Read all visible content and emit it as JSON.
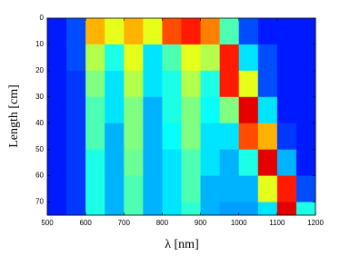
{
  "chart_data": {
    "type": "heatmap",
    "xlabel": "λ [nm]",
    "ylabel": "Length [cm]",
    "xbins": [
      500,
      550,
      600,
      650,
      700,
      750,
      800,
      850,
      900,
      950,
      1000,
      1050,
      1100,
      1150,
      1200
    ],
    "ybins": [
      0,
      10,
      20,
      30,
      40,
      50,
      60,
      70,
      75
    ],
    "z": [
      [
        0.15,
        0.2,
        0.7,
        0.6,
        0.7,
        0.6,
        0.8,
        0.85,
        0.75,
        0.45,
        0.2,
        0.15,
        0.15,
        0.15
      ],
      [
        0.15,
        0.2,
        0.55,
        0.4,
        0.6,
        0.35,
        0.45,
        0.6,
        0.55,
        0.85,
        0.35,
        0.2,
        0.15,
        0.15
      ],
      [
        0.15,
        0.18,
        0.5,
        0.35,
        0.55,
        0.35,
        0.4,
        0.55,
        0.4,
        0.85,
        0.6,
        0.2,
        0.15,
        0.15
      ],
      [
        0.15,
        0.18,
        0.45,
        0.35,
        0.5,
        0.3,
        0.4,
        0.5,
        0.38,
        0.5,
        0.9,
        0.35,
        0.15,
        0.15
      ],
      [
        0.15,
        0.18,
        0.45,
        0.3,
        0.5,
        0.3,
        0.38,
        0.5,
        0.35,
        0.35,
        0.8,
        0.7,
        0.18,
        0.15
      ],
      [
        0.15,
        0.18,
        0.4,
        0.3,
        0.48,
        0.3,
        0.35,
        0.45,
        0.35,
        0.3,
        0.4,
        0.9,
        0.3,
        0.15
      ],
      [
        0.15,
        0.18,
        0.4,
        0.3,
        0.45,
        0.3,
        0.35,
        0.45,
        0.3,
        0.3,
        0.3,
        0.6,
        0.85,
        0.2
      ],
      [
        0.15,
        0.18,
        0.4,
        0.3,
        0.45,
        0.3,
        0.35,
        0.42,
        0.3,
        0.28,
        0.28,
        0.35,
        0.9,
        0.4
      ]
    ],
    "zlim": [
      0,
      1
    ],
    "colormap": "jet",
    "yreversed": true,
    "xlim": [
      500,
      1200
    ],
    "xticks": [
      500,
      600,
      700,
      800,
      900,
      1000,
      1100,
      1200
    ],
    "ylim": [
      0,
      75
    ],
    "yticks": [
      0,
      10,
      20,
      30,
      40,
      50,
      60,
      70
    ]
  }
}
